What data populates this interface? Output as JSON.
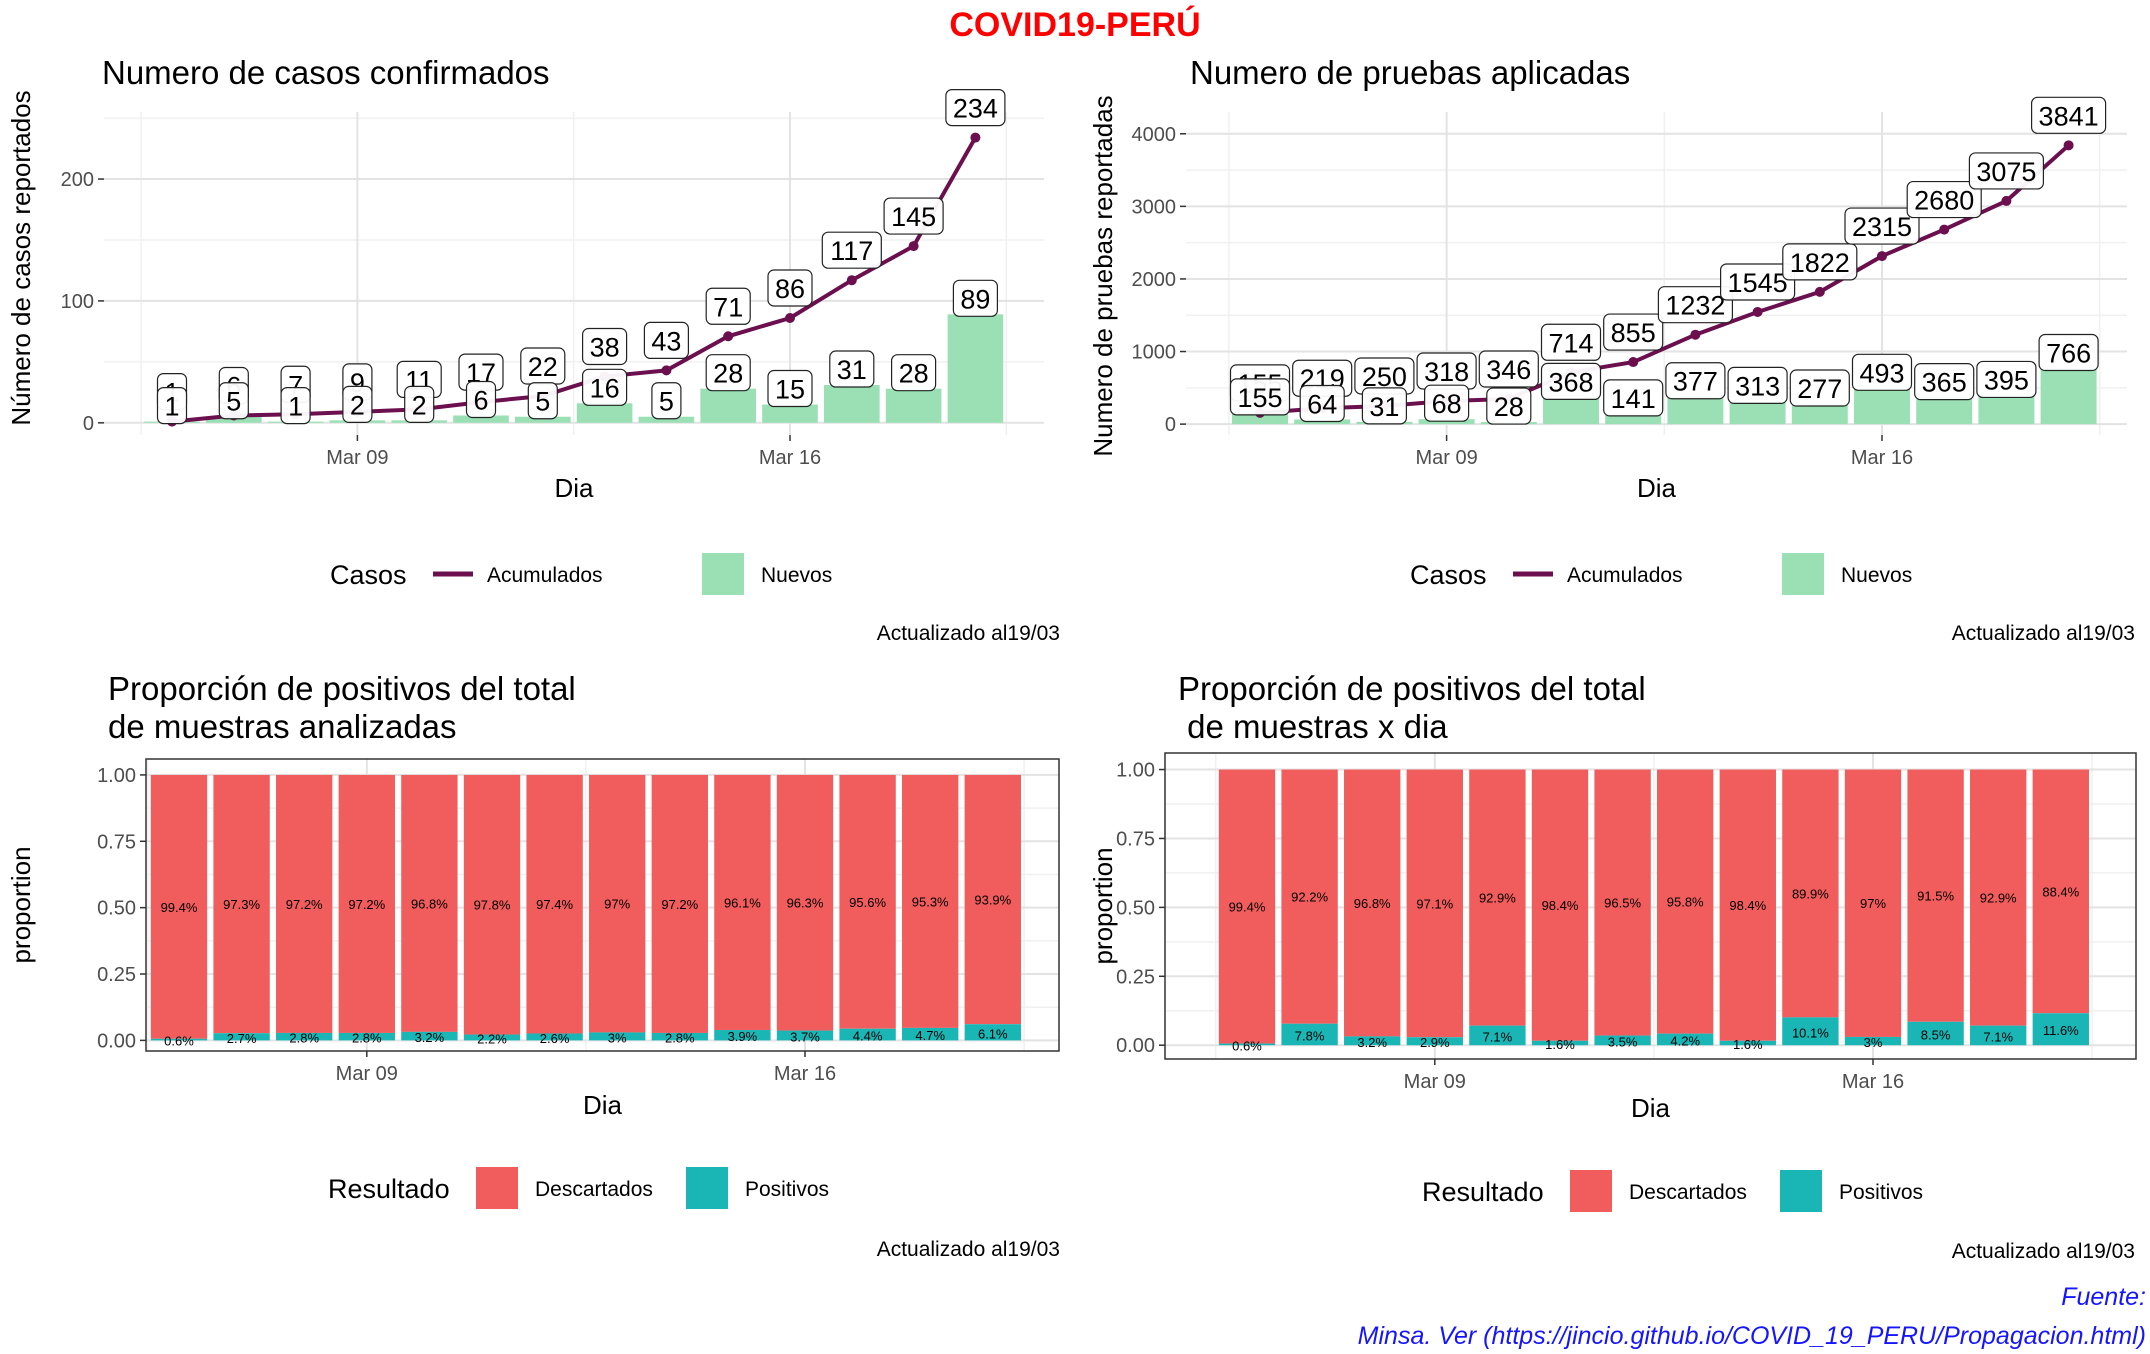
{
  "title": "COVID19-PERÚ",
  "source": {
    "line1": "Fuente:",
    "line2": "Minsa. Ver (https://jincio.github.io/COVID_19_PERU/Propagacion.html)"
  },
  "colors": {
    "accumulated_line": "#6b0f4f",
    "new_bars": "#9be0b5",
    "discarded": "#f15c5c",
    "positive": "#1ab5b5",
    "title": "#ff0000",
    "source": "#1515ff"
  },
  "chart_data": [
    {
      "id": "cases",
      "type": "bar+line",
      "title": "Numero de casos confirmados",
      "xlabel": "Dia",
      "ylabel": "Número de casos reportados",
      "x_ticks": [
        "Mar 09",
        "Mar 16"
      ],
      "y_ticks": [
        "0",
        "100",
        "200"
      ],
      "ylim": [
        -10,
        255
      ],
      "dates": [
        "Mar 06",
        "Mar 07",
        "Mar 08",
        "Mar 09",
        "Mar 10",
        "Mar 11",
        "Mar 12",
        "Mar 13",
        "Mar 14",
        "Mar 15",
        "Mar 16",
        "Mar 17",
        "Mar 18",
        "Mar 19"
      ],
      "series": [
        {
          "name": "Acumulados",
          "values": [
            1,
            6,
            7,
            9,
            11,
            17,
            22,
            38,
            43,
            71,
            86,
            117,
            145,
            234
          ]
        },
        {
          "name": "Nuevos",
          "values": [
            1,
            5,
            1,
            2,
            2,
            6,
            5,
            16,
            5,
            28,
            15,
            31,
            28,
            89
          ]
        }
      ],
      "legend_title": "Casos",
      "legend_position": "bottom",
      "updated": "Actualizado al19/03"
    },
    {
      "id": "tests",
      "type": "bar+line",
      "title": "Numero de pruebas aplicadas",
      "xlabel": "Dia",
      "ylabel": "Numero de pruebas reportadas",
      "x_ticks": [
        "Mar 09",
        "Mar 16"
      ],
      "y_ticks": [
        "0",
        "1000",
        "2000",
        "3000",
        "4000"
      ],
      "ylim": [
        -150,
        4300
      ],
      "dates": [
        "Mar 06",
        "Mar 07",
        "Mar 08",
        "Mar 09",
        "Mar 10",
        "Mar 11",
        "Mar 12",
        "Mar 13",
        "Mar 14",
        "Mar 15",
        "Mar 16",
        "Mar 17",
        "Mar 18",
        "Mar 19"
      ],
      "series": [
        {
          "name": "Acumulados",
          "values": [
            155,
            219,
            250,
            318,
            346,
            714,
            855,
            1232,
            1545,
            1822,
            2315,
            2680,
            3075,
            3841
          ]
        },
        {
          "name": "Nuevos",
          "values": [
            155,
            64,
            31,
            68,
            28,
            368,
            141,
            377,
            313,
            277,
            493,
            365,
            395,
            766
          ]
        }
      ],
      "legend_title": "Casos",
      "legend_position": "bottom",
      "updated": "Actualizado al19/03"
    },
    {
      "id": "prop_total",
      "type": "bar",
      "stacked": true,
      "title": "Proporción de positivos del total\nde muestras analizadas",
      "xlabel": "Dia",
      "ylabel": "proportion",
      "x_ticks": [
        "Mar 09",
        "Mar 16"
      ],
      "y_ticks": [
        "0.00",
        "0.25",
        "0.50",
        "0.75",
        "1.00"
      ],
      "ylim": [
        -0.04,
        1.06
      ],
      "dates": [
        "Mar 06",
        "Mar 07",
        "Mar 08",
        "Mar 09",
        "Mar 10",
        "Mar 11",
        "Mar 12",
        "Mar 13",
        "Mar 14",
        "Mar 15",
        "Mar 16",
        "Mar 17",
        "Mar 18",
        "Mar 19"
      ],
      "series": [
        {
          "name": "Descartados",
          "values": [
            0.994,
            0.973,
            0.972,
            0.972,
            0.968,
            0.978,
            0.974,
            0.97,
            0.972,
            0.961,
            0.963,
            0.956,
            0.953,
            0.939
          ],
          "labels": [
            "99.4%",
            "97.3%",
            "97.2%",
            "97.2%",
            "96.8%",
            "97.8%",
            "97.4%",
            "97%",
            "97.2%",
            "96.1%",
            "96.3%",
            "95.6%",
            "95.3%",
            "93.9%"
          ]
        },
        {
          "name": "Positivos",
          "values": [
            0.006,
            0.027,
            0.028,
            0.028,
            0.032,
            0.022,
            0.026,
            0.03,
            0.028,
            0.039,
            0.037,
            0.044,
            0.047,
            0.061
          ],
          "labels": [
            "0.6%",
            "2.7%",
            "2.8%",
            "2.8%",
            "3.2%",
            "2.2%",
            "2.6%",
            "3%",
            "2.8%",
            "3.9%",
            "3.7%",
            "4.4%",
            "4.7%",
            "6.1%"
          ]
        }
      ],
      "legend_title": "Resultado",
      "legend_position": "bottom",
      "updated": "Actualizado al19/03"
    },
    {
      "id": "prop_daily",
      "type": "bar",
      "stacked": true,
      "title": "Proporción de positivos del total\n de muestras x dia",
      "xlabel": "Dia",
      "ylabel": "proportion",
      "x_ticks": [
        "Mar 09",
        "Mar 16"
      ],
      "y_ticks": [
        "0.00",
        "0.25",
        "0.50",
        "0.75",
        "1.00"
      ],
      "ylim": [
        -0.05,
        1.06
      ],
      "dates": [
        "Mar 06",
        "Mar 07",
        "Mar 08",
        "Mar 09",
        "Mar 10",
        "Mar 11",
        "Mar 12",
        "Mar 13",
        "Mar 14",
        "Mar 15",
        "Mar 16",
        "Mar 17",
        "Mar 18",
        "Mar 19"
      ],
      "series": [
        {
          "name": "Descartados",
          "values": [
            0.994,
            0.922,
            0.968,
            0.971,
            0.929,
            0.984,
            0.965,
            0.958,
            0.984,
            0.899,
            0.97,
            0.915,
            0.929,
            0.884
          ],
          "labels": [
            "99.4%",
            "92.2%",
            "96.8%",
            "97.1%",
            "92.9%",
            "98.4%",
            "96.5%",
            "95.8%",
            "98.4%",
            "89.9%",
            "97%",
            "91.5%",
            "92.9%",
            "88.4%"
          ]
        },
        {
          "name": "Positivos",
          "values": [
            0.006,
            0.078,
            0.032,
            0.029,
            0.071,
            0.016,
            0.035,
            0.042,
            0.016,
            0.101,
            0.03,
            0.085,
            0.071,
            0.116
          ],
          "labels": [
            "0.6%",
            "7.8%",
            "3.2%",
            "2.9%",
            "7.1%",
            "1.6%",
            "3.5%",
            "4.2%",
            "1.6%",
            "10.1%",
            "3%",
            "8.5%",
            "7.1%",
            "11.6%"
          ]
        }
      ],
      "legend_title": "Resultado",
      "legend_position": "bottom",
      "updated": "Actualizado al19/03"
    }
  ]
}
